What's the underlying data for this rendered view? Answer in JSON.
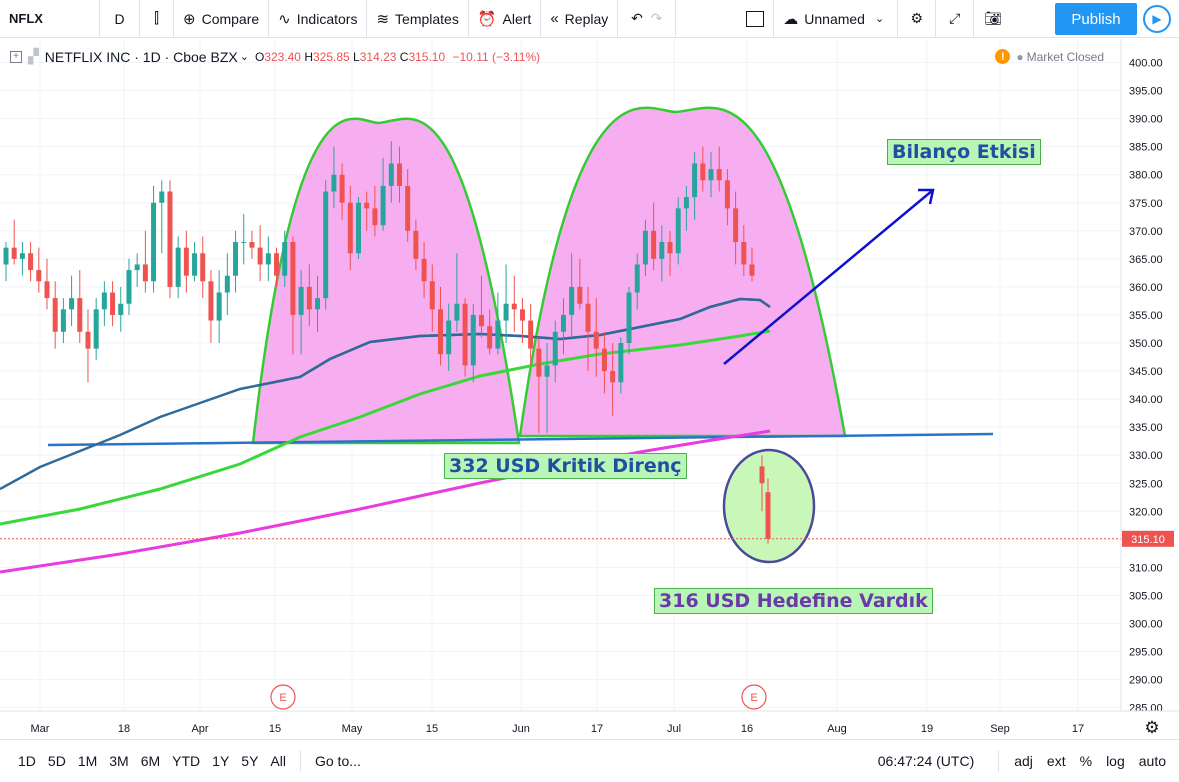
{
  "toolbar": {
    "symbol": "NFLX",
    "interval": "D",
    "compare": "Compare",
    "indicators": "Indicators",
    "templates": "Templates",
    "alert": "Alert",
    "replay": "Replay",
    "layout_name": "Unnamed",
    "publish": "Publish"
  },
  "legend": {
    "title": "NETFLIX INC · 1D · Cboe BZX",
    "open_label": "O",
    "open": "323.40",
    "high_label": "H",
    "high": "325.85",
    "low_label": "L",
    "low": "314.23",
    "close_label": "C",
    "close": "315.10",
    "change": "−10.11 (−3.11%)"
  },
  "market_status": "Market Closed",
  "price_axis": {
    "ticks": [
      "400.00",
      "395.00",
      "390.00",
      "385.00",
      "380.00",
      "375.00",
      "370.00",
      "365.00",
      "360.00",
      "355.00",
      "350.00",
      "345.00",
      "340.00",
      "335.00",
      "330.00",
      "325.00",
      "320.00",
      "315.00",
      "310.00",
      "305.00",
      "300.00",
      "295.00",
      "290.00",
      "285.00"
    ],
    "last_price": "315.10",
    "last_price_color": "#ef5350"
  },
  "time_axis": {
    "ticks": [
      "Mar",
      "18",
      "Apr",
      "15",
      "May",
      "15",
      "Jun",
      "17",
      "Jul",
      "16",
      "Aug",
      "19",
      "Sep",
      "17"
    ]
  },
  "annotations": {
    "resistance": "332 USD Kritik Direnç",
    "target": "316 USD Hedefine Vardık",
    "earnings": "Bilanço Etkisi",
    "earnings_marker": "E"
  },
  "colors": {
    "up": "#26a69a",
    "down": "#ef5350",
    "accent": "#2196f3",
    "pattern_fill": "#f7aef0",
    "pattern_outline": "#33cc33",
    "neckline": "#2a73c7",
    "ma_short": "#5c5aa8",
    "ma_mid": "#39d83a",
    "ma_long": "#e83be0",
    "target_circle_fill": "#c9f7b9",
    "target_circle_stroke": "#4a4a9a",
    "arrow": "#1010cc"
  },
  "bottom_bar": {
    "ranges": [
      "1D",
      "5D",
      "1M",
      "3M",
      "6M",
      "YTD",
      "1Y",
      "5Y",
      "All"
    ],
    "goto": "Go to...",
    "clock": "06:47:24 (UTC)",
    "right": [
      "adj",
      "ext",
      "%",
      "log",
      "auto"
    ]
  },
  "chart_data": {
    "type": "candlestick",
    "symbol": "NFLX",
    "interval": "1D",
    "ylim": [
      283,
      403
    ],
    "last": {
      "open": 323.4,
      "high": 325.85,
      "low": 314.23,
      "close": 315.1
    },
    "candles": [
      {
        "o": 364,
        "h": 368,
        "l": 361,
        "c": 367
      },
      {
        "o": 367,
        "h": 372,
        "l": 364,
        "c": 365
      },
      {
        "o": 365,
        "h": 368,
        "l": 362,
        "c": 366
      },
      {
        "o": 366,
        "h": 368,
        "l": 361,
        "c": 363
      },
      {
        "o": 363,
        "h": 367,
        "l": 359,
        "c": 361
      },
      {
        "o": 361,
        "h": 365,
        "l": 356,
        "c": 358
      },
      {
        "o": 358,
        "h": 361,
        "l": 349,
        "c": 352
      },
      {
        "o": 352,
        "h": 358,
        "l": 350,
        "c": 356
      },
      {
        "o": 356,
        "h": 362,
        "l": 353,
        "c": 358
      },
      {
        "o": 358,
        "h": 363,
        "l": 350,
        "c": 352
      },
      {
        "o": 352,
        "h": 356,
        "l": 343,
        "c": 349
      },
      {
        "o": 349,
        "h": 358,
        "l": 347,
        "c": 356
      },
      {
        "o": 356,
        "h": 361,
        "l": 353,
        "c": 359
      },
      {
        "o": 359,
        "h": 361,
        "l": 353,
        "c": 355
      },
      {
        "o": 355,
        "h": 360,
        "l": 352,
        "c": 357
      },
      {
        "o": 357,
        "h": 365,
        "l": 355,
        "c": 363
      },
      {
        "o": 363,
        "h": 366,
        "l": 360,
        "c": 364
      },
      {
        "o": 364,
        "h": 370,
        "l": 359,
        "c": 361
      },
      {
        "o": 361,
        "h": 378,
        "l": 359,
        "c": 375
      },
      {
        "o": 375,
        "h": 379,
        "l": 366,
        "c": 377
      },
      {
        "o": 377,
        "h": 379,
        "l": 358,
        "c": 360
      },
      {
        "o": 360,
        "h": 369,
        "l": 358,
        "c": 367
      },
      {
        "o": 367,
        "h": 370,
        "l": 359,
        "c": 362
      },
      {
        "o": 362,
        "h": 368,
        "l": 361,
        "c": 366
      },
      {
        "o": 366,
        "h": 369,
        "l": 358,
        "c": 361
      },
      {
        "o": 361,
        "h": 363,
        "l": 350,
        "c": 354
      },
      {
        "o": 354,
        "h": 363,
        "l": 350,
        "c": 359
      },
      {
        "o": 359,
        "h": 366,
        "l": 355,
        "c": 362
      },
      {
        "o": 362,
        "h": 370,
        "l": 359,
        "c": 368
      },
      {
        "o": 368,
        "h": 373,
        "l": 364,
        "c": 368
      },
      {
        "o": 368,
        "h": 370,
        "l": 365,
        "c": 367
      },
      {
        "o": 367,
        "h": 371,
        "l": 361,
        "c": 364
      },
      {
        "o": 364,
        "h": 369,
        "l": 361,
        "c": 366
      },
      {
        "o": 366,
        "h": 367,
        "l": 360,
        "c": 362
      },
      {
        "o": 362,
        "h": 370,
        "l": 360,
        "c": 368
      },
      {
        "o": 368,
        "h": 369,
        "l": 348,
        "c": 355
      },
      {
        "o": 355,
        "h": 363,
        "l": 348,
        "c": 360
      },
      {
        "o": 360,
        "h": 364,
        "l": 353,
        "c": 356
      },
      {
        "o": 356,
        "h": 362,
        "l": 352,
        "c": 358
      },
      {
        "o": 358,
        "h": 379,
        "l": 356,
        "c": 377
      },
      {
        "o": 377,
        "h": 385,
        "l": 374,
        "c": 380
      },
      {
        "o": 380,
        "h": 382,
        "l": 372,
        "c": 375
      },
      {
        "o": 375,
        "h": 378,
        "l": 363,
        "c": 366
      },
      {
        "o": 366,
        "h": 376,
        "l": 365,
        "c": 375
      },
      {
        "o": 375,
        "h": 377,
        "l": 370,
        "c": 374
      },
      {
        "o": 374,
        "h": 378,
        "l": 369,
        "c": 371
      },
      {
        "o": 371,
        "h": 383,
        "l": 370,
        "c": 378
      },
      {
        "o": 378,
        "h": 386,
        "l": 375,
        "c": 382
      },
      {
        "o": 382,
        "h": 385,
        "l": 375,
        "c": 378
      },
      {
        "o": 378,
        "h": 381,
        "l": 368,
        "c": 370
      },
      {
        "o": 370,
        "h": 372,
        "l": 363,
        "c": 365
      },
      {
        "o": 365,
        "h": 368,
        "l": 358,
        "c": 361
      },
      {
        "o": 361,
        "h": 364,
        "l": 352,
        "c": 356
      },
      {
        "o": 356,
        "h": 360,
        "l": 346,
        "c": 348
      },
      {
        "o": 348,
        "h": 357,
        "l": 345,
        "c": 354
      },
      {
        "o": 354,
        "h": 366,
        "l": 352,
        "c": 357
      },
      {
        "o": 357,
        "h": 358,
        "l": 344,
        "c": 346
      },
      {
        "o": 346,
        "h": 357,
        "l": 343,
        "c": 355
      },
      {
        "o": 355,
        "h": 362,
        "l": 351,
        "c": 353
      },
      {
        "o": 353,
        "h": 356,
        "l": 348,
        "c": 349
      },
      {
        "o": 349,
        "h": 359,
        "l": 348,
        "c": 354
      },
      {
        "o": 354,
        "h": 364,
        "l": 350,
        "c": 357
      },
      {
        "o": 357,
        "h": 362,
        "l": 352,
        "c": 356
      },
      {
        "o": 356,
        "h": 358,
        "l": 350,
        "c": 354
      },
      {
        "o": 354,
        "h": 357,
        "l": 346,
        "c": 349
      },
      {
        "o": 349,
        "h": 351,
        "l": 334,
        "c": 344
      },
      {
        "o": 344,
        "h": 350,
        "l": 334,
        "c": 346
      },
      {
        "o": 346,
        "h": 354,
        "l": 343,
        "c": 352
      },
      {
        "o": 352,
        "h": 358,
        "l": 348,
        "c": 355
      },
      {
        "o": 355,
        "h": 366,
        "l": 351,
        "c": 360
      },
      {
        "o": 360,
        "h": 365,
        "l": 356,
        "c": 357
      },
      {
        "o": 357,
        "h": 360,
        "l": 345,
        "c": 352
      },
      {
        "o": 352,
        "h": 358,
        "l": 344,
        "c": 349
      },
      {
        "o": 349,
        "h": 352,
        "l": 341,
        "c": 345
      },
      {
        "o": 345,
        "h": 350,
        "l": 337,
        "c": 343
      },
      {
        "o": 343,
        "h": 351,
        "l": 341,
        "c": 350
      },
      {
        "o": 350,
        "h": 360,
        "l": 348,
        "c": 359
      },
      {
        "o": 359,
        "h": 366,
        "l": 356,
        "c": 364
      },
      {
        "o": 364,
        "h": 372,
        "l": 362,
        "c": 370
      },
      {
        "o": 370,
        "h": 375,
        "l": 363,
        "c": 365
      },
      {
        "o": 365,
        "h": 371,
        "l": 361,
        "c": 368
      },
      {
        "o": 368,
        "h": 370,
        "l": 362,
        "c": 366
      },
      {
        "o": 366,
        "h": 376,
        "l": 364,
        "c": 374
      },
      {
        "o": 374,
        "h": 378,
        "l": 370,
        "c": 376
      },
      {
        "o": 376,
        "h": 384,
        "l": 372,
        "c": 382
      },
      {
        "o": 382,
        "h": 385,
        "l": 377,
        "c": 379
      },
      {
        "o": 379,
        "h": 384,
        "l": 376,
        "c": 381
      },
      {
        "o": 381,
        "h": 385,
        "l": 377,
        "c": 379
      },
      {
        "o": 379,
        "h": 381,
        "l": 371,
        "c": 374
      },
      {
        "o": 374,
        "h": 377,
        "l": 364,
        "c": 368
      },
      {
        "o": 368,
        "h": 371,
        "l": 362,
        "c": 364
      },
      {
        "o": 364,
        "h": 367,
        "l": 361,
        "c": 362
      },
      {
        "o": 328,
        "h": 330,
        "l": 320,
        "c": 325
      },
      {
        "o": 323.4,
        "h": 325.85,
        "l": 314.23,
        "c": 315.1
      }
    ],
    "neckline_price": 332.5
  }
}
